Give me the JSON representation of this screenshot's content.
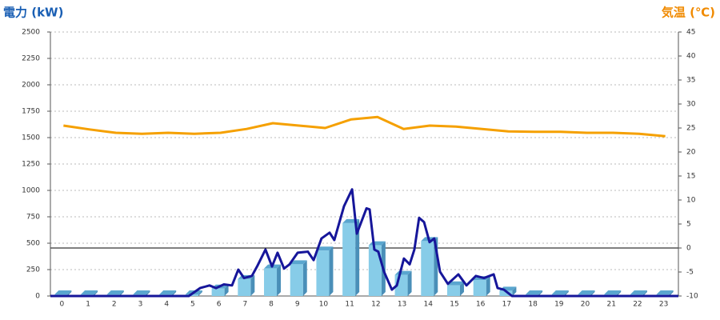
{
  "chart_data": {
    "type": "bar",
    "y_label": "電力 (kW)",
    "y2_label": "気温 (℃)",
    "categories": [
      "0",
      "1",
      "2",
      "3",
      "4",
      "5",
      "6",
      "7",
      "8",
      "9",
      "10",
      "11",
      "12",
      "13",
      "14",
      "15",
      "16",
      "17",
      "18",
      "19",
      "20",
      "21",
      "22",
      "23"
    ],
    "xlim": [
      -0.5,
      23.5
    ],
    "ylim": [
      0,
      2500
    ],
    "yticks": [
      0,
      250,
      500,
      750,
      1000,
      1250,
      1500,
      1750,
      2000,
      2250,
      2500
    ],
    "y2lim": [
      -10,
      45
    ],
    "y2ticks": [
      -10,
      -5,
      0,
      5,
      10,
      15,
      20,
      25,
      30,
      35,
      40,
      45
    ],
    "grid": true,
    "y2_zero_line": true,
    "series": [
      {
        "type": "bar",
        "color": "#87cce8",
        "values": [
          15,
          15,
          15,
          15,
          15,
          15,
          70,
          160,
          260,
          300,
          430,
          690,
          480,
          200,
          520,
          100,
          150,
          50,
          15,
          15,
          15,
          15,
          15,
          15
        ]
      },
      {
        "type": "line",
        "color": "#16169a",
        "x": [
          -0.5,
          4.79,
          5.22,
          5.58,
          5.83,
          6.13,
          6.44,
          6.68,
          6.9,
          7.2,
          7.42,
          7.72,
          7.97,
          8.18,
          8.43,
          8.64,
          8.95,
          9.34,
          9.56,
          9.86,
          10.17,
          10.35,
          10.72,
          11.03,
          11.21,
          11.58,
          11.7,
          11.88,
          12.03,
          12.25,
          12.55,
          12.74,
          13.01,
          13.23,
          13.41,
          13.59,
          13.78,
          13.99,
          14.17,
          14.39,
          14.69,
          15.09,
          15.4,
          15.76,
          16.07,
          16.44,
          16.59,
          16.83,
          17.14,
          23.5
        ],
        "values": [
          0,
          0,
          75,
          100,
          75,
          110,
          100,
          250,
          170,
          190,
          290,
          440,
          280,
          410,
          260,
          300,
          410,
          420,
          340,
          545,
          600,
          530,
          850,
          1010,
          590,
          830,
          820,
          440,
          420,
          230,
          60,
          100,
          355,
          300,
          440,
          740,
          700,
          510,
          545,
          230,
          115,
          205,
          100,
          190,
          170,
          205,
          75,
          60,
          0,
          0
        ]
      },
      {
        "type": "line",
        "axis": "y2",
        "color": "#f5a000",
        "values": [
          25.5,
          24.7,
          24,
          23.8,
          24,
          23.8,
          24,
          24.8,
          26,
          25.5,
          25,
          26.8,
          27.3,
          24.8,
          25.5,
          25.3,
          24.8,
          24.3,
          24.2,
          24.2,
          24,
          24,
          23.8,
          23.3
        ]
      }
    ]
  }
}
